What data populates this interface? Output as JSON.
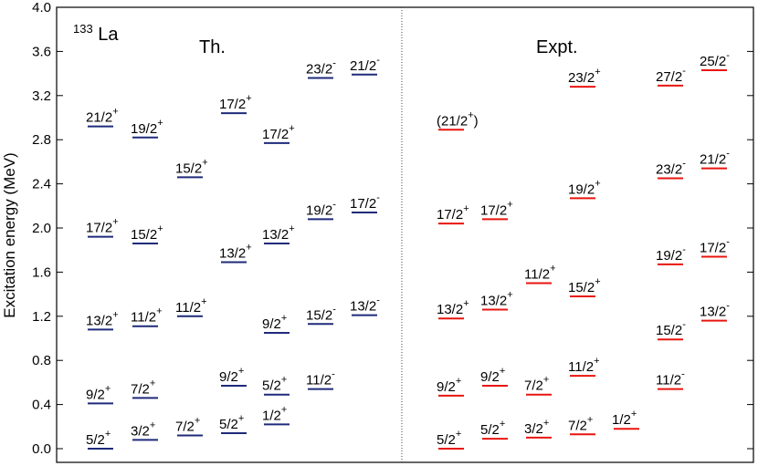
{
  "chart_data": {
    "type": "level-scheme",
    "ylabel": "Excitation energy (MeV)",
    "ylim": [
      0.0,
      4.0
    ],
    "yticks": [
      "0.0",
      "0.4",
      "0.8",
      "1.2",
      "1.6",
      "2.0",
      "2.4",
      "2.8",
      "3.2",
      "3.6",
      "4.0"
    ],
    "nucleus": {
      "mass": "133",
      "element": "La"
    },
    "panels": [
      {
        "name": "Th.",
        "color": "#1f2a7a",
        "levels": [
          {
            "label": "5/2",
            "parity": "+",
            "energy": 0.0
          },
          {
            "label": "3/2",
            "parity": "+",
            "energy": 0.08
          },
          {
            "label": "7/2",
            "parity": "+",
            "energy": 0.12
          },
          {
            "label": "5/2",
            "parity": "+",
            "energy": 0.14
          },
          {
            "label": "1/2",
            "parity": "+",
            "energy": 0.22
          },
          {
            "label": "9/2",
            "parity": "+",
            "energy": 0.41
          },
          {
            "label": "7/2",
            "parity": "+",
            "energy": 0.46
          },
          {
            "label": "9/2",
            "parity": "+",
            "energy": 0.57
          },
          {
            "label": "5/2",
            "parity": "+",
            "energy": 0.49
          },
          {
            "label": "11/2",
            "parity": "-",
            "energy": 0.54
          },
          {
            "label": "13/2",
            "parity": "+",
            "energy": 1.08
          },
          {
            "label": "11/2",
            "parity": "+",
            "energy": 1.11
          },
          {
            "label": "11/2",
            "parity": "+",
            "energy": 1.2
          },
          {
            "label": "9/2",
            "parity": "+",
            "energy": 1.05
          },
          {
            "label": "15/2",
            "parity": "-",
            "energy": 1.13
          },
          {
            "label": "13/2",
            "parity": "-",
            "energy": 1.21
          },
          {
            "label": "17/2",
            "parity": "+",
            "energy": 1.92
          },
          {
            "label": "15/2",
            "parity": "+",
            "energy": 1.86
          },
          {
            "label": "13/2",
            "parity": "+",
            "energy": 1.69
          },
          {
            "label": "13/2",
            "parity": "+",
            "energy": 1.86
          },
          {
            "label": "19/2",
            "parity": "-",
            "energy": 2.08
          },
          {
            "label": "17/2",
            "parity": "-",
            "energy": 2.14
          },
          {
            "label": "21/2",
            "parity": "+",
            "energy": 2.92
          },
          {
            "label": "19/2",
            "parity": "+",
            "energy": 2.82
          },
          {
            "label": "15/2",
            "parity": "+",
            "energy": 2.46
          },
          {
            "label": "17/2",
            "parity": "+",
            "energy": 3.04
          },
          {
            "label": "17/2",
            "parity": "+",
            "energy": 2.77
          },
          {
            "label": "23/2",
            "parity": "-",
            "energy": 3.36
          },
          {
            "label": "21/2",
            "parity": "-",
            "energy": 3.39
          }
        ]
      },
      {
        "name": "Expt.",
        "color": "#e8150f",
        "levels": [
          {
            "label": "5/2",
            "parity": "+",
            "energy": 0.0
          },
          {
            "label": "5/2",
            "parity": "+",
            "energy": 0.09
          },
          {
            "label": "3/2",
            "parity": "+",
            "energy": 0.1
          },
          {
            "label": "7/2",
            "parity": "+",
            "energy": 0.13
          },
          {
            "label": "1/2",
            "parity": "+",
            "energy": 0.18
          },
          {
            "label": "9/2",
            "parity": "+",
            "energy": 0.48
          },
          {
            "label": "9/2",
            "parity": "+",
            "energy": 0.57
          },
          {
            "label": "7/2",
            "parity": "+",
            "energy": 0.49
          },
          {
            "label": "11/2",
            "parity": "+",
            "energy": 0.66
          },
          {
            "label": "11/2",
            "parity": "-",
            "energy": 0.54
          },
          {
            "label": "13/2",
            "parity": "+",
            "energy": 1.18
          },
          {
            "label": "13/2",
            "parity": "+",
            "energy": 1.26
          },
          {
            "label": "11/2",
            "parity": "+",
            "energy": 1.5
          },
          {
            "label": "15/2",
            "parity": "+",
            "energy": 1.38
          },
          {
            "label": "15/2",
            "parity": "-",
            "energy": 0.99
          },
          {
            "label": "13/2",
            "parity": "-",
            "energy": 1.16
          },
          {
            "label": "17/2",
            "parity": "+",
            "energy": 2.04
          },
          {
            "label": "17/2",
            "parity": "+",
            "energy": 2.08
          },
          {
            "label": "19/2",
            "parity": "+",
            "energy": 2.27
          },
          {
            "label": "19/2",
            "parity": "-",
            "energy": 1.67
          },
          {
            "label": "17/2",
            "parity": "-",
            "energy": 1.74
          },
          {
            "label": "21/2",
            "parity": "+",
            "energy": 2.89,
            "paren": true
          },
          {
            "label": "23/2",
            "parity": "+",
            "energy": 3.28
          },
          {
            "label": "23/2",
            "parity": "-",
            "energy": 2.45
          },
          {
            "label": "21/2",
            "parity": "-",
            "energy": 2.54
          },
          {
            "label": "27/2",
            "parity": "-",
            "energy": 3.29
          },
          {
            "label": "25/2",
            "parity": "-",
            "energy": 3.43
          }
        ]
      }
    ]
  }
}
